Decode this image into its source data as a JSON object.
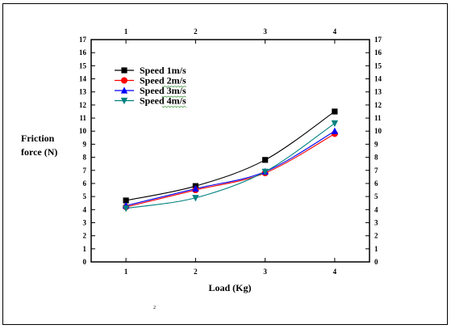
{
  "chart_data": {
    "type": "line",
    "x": [
      1,
      2,
      3,
      4
    ],
    "xticks": [
      "1",
      "2",
      "3",
      "4"
    ],
    "xlim": [
      0.5,
      4.5
    ],
    "xlabel": "Load (Kg)",
    "ylabel_line1": "Friction",
    "ylabel_line2": "force (N)",
    "ylim": [
      0,
      17
    ],
    "yticks": [
      0,
      1,
      2,
      3,
      4,
      5,
      6,
      7,
      8,
      9,
      10,
      11,
      12,
      13,
      14,
      15,
      16,
      17
    ],
    "legend_position": "top-left",
    "grid": false,
    "footnote": "2",
    "series": [
      {
        "name": "Speed 1m/s",
        "values": [
          4.7,
          5.8,
          7.8,
          11.5
        ],
        "color": "#000000",
        "marker": "square"
      },
      {
        "name": "Speed 2m/s",
        "values": [
          4.2,
          5.5,
          6.8,
          9.8
        ],
        "color": "#ff0000",
        "marker": "circle"
      },
      {
        "name": "Speed 3m/s",
        "values": [
          4.3,
          5.6,
          6.9,
          10.0
        ],
        "color": "#0000ff",
        "marker": "triangle-up"
      },
      {
        "name": "Speed 4m/s",
        "values": [
          4.1,
          4.9,
          6.9,
          10.6
        ],
        "color": "#008080",
        "marker": "triangle-down"
      }
    ]
  }
}
